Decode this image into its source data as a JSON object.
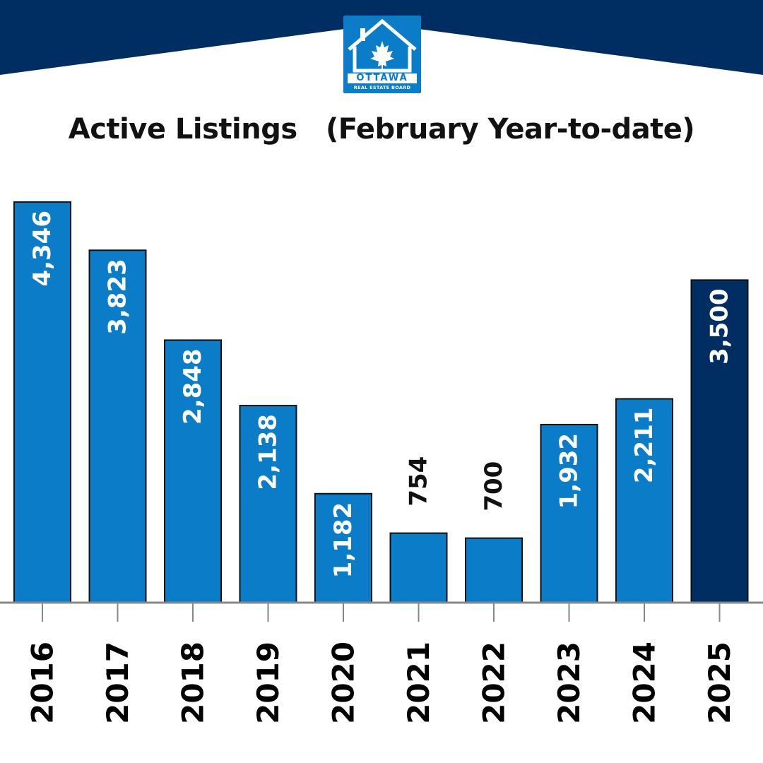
{
  "logo": {
    "word1": "OTTAWA",
    "word2": "REAL ESTATE BOARD",
    "icon": "house-maple-leaf-icon"
  },
  "colors": {
    "banner": "#002d62",
    "bar": "#0a7cc8",
    "bar_highlight": "#002d62",
    "logo_bg": "#0a7cc8"
  },
  "chart_data": {
    "type": "bar",
    "title": "Active Listings   (February Year-to-date)",
    "categories": [
      "2016",
      "2017",
      "2018",
      "2019",
      "2020",
      "2021",
      "2022",
      "2023",
      "2024",
      "2025"
    ],
    "values": [
      4346,
      3823,
      2848,
      2138,
      1182,
      754,
      700,
      1932,
      2211,
      3500
    ],
    "labels": [
      "4,346",
      "3,823",
      "2,848",
      "2,138",
      "1,182",
      "754",
      "700",
      "1,932",
      "2,211",
      "3,500"
    ],
    "highlight_category": "2025",
    "ylim": [
      0,
      4346
    ],
    "grid": false,
    "legend": "none"
  }
}
